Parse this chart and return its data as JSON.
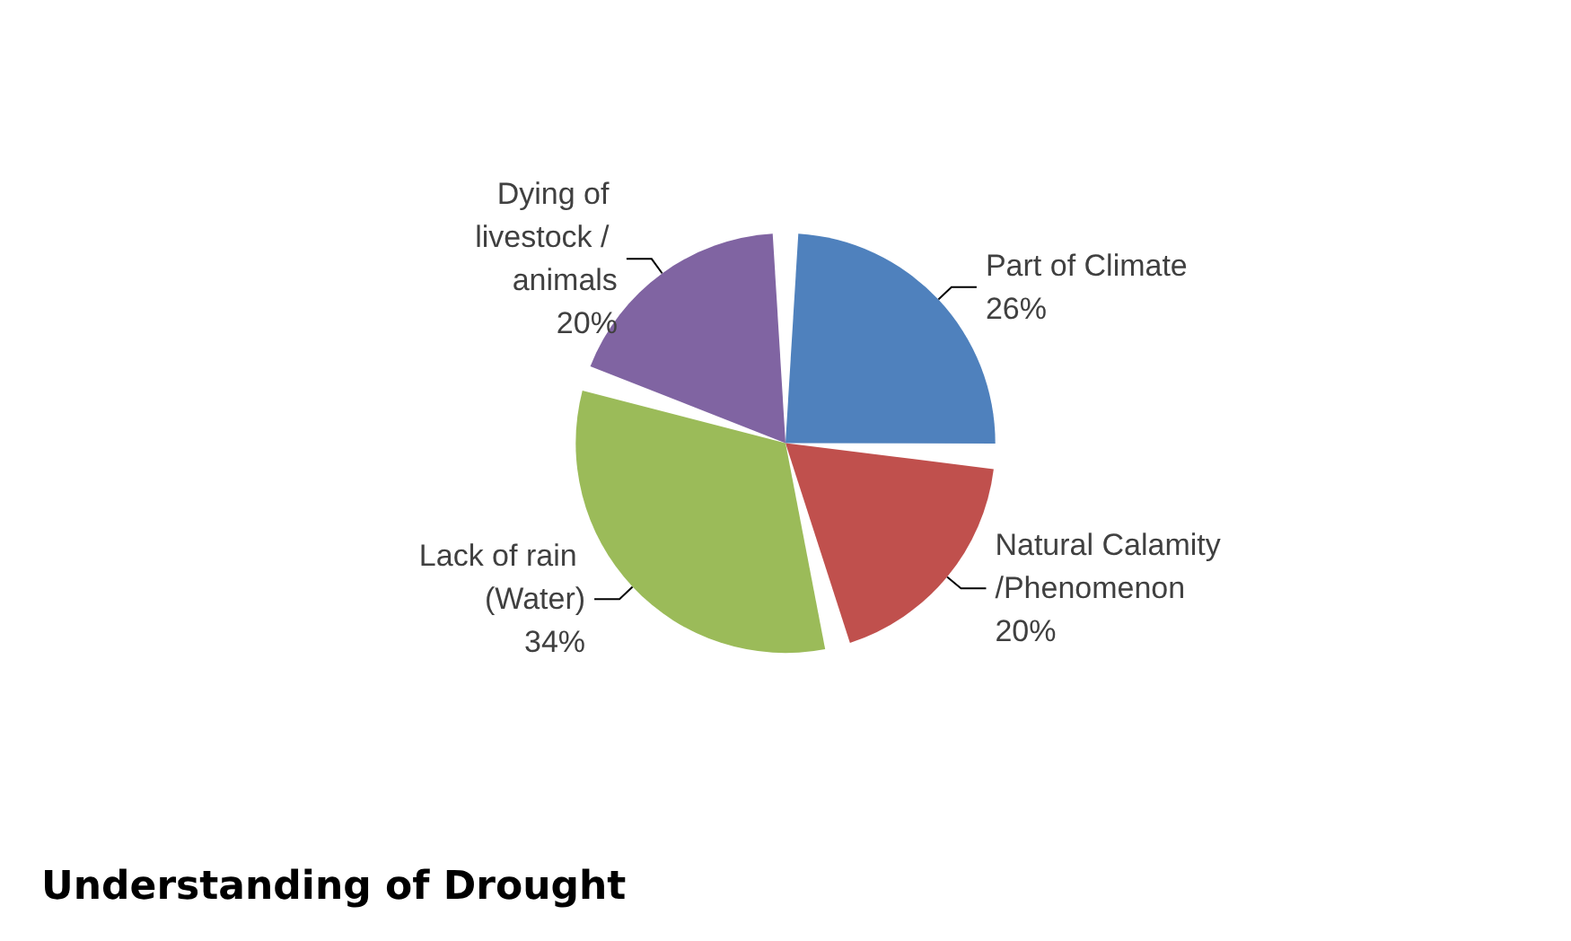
{
  "chart_data": {
    "type": "pie",
    "title": "Understanding of Drought",
    "categories": [
      "Part of Climate",
      "Natural Calamity/Phenomenon",
      "Lack of rain (Water)",
      "Dying of livestock / animals"
    ],
    "values": [
      26,
      20,
      34,
      20
    ],
    "value_labels": [
      "26%",
      "20%",
      "34%",
      "20%"
    ],
    "colors": [
      "#4f81bd",
      "#c0504d",
      "#9bbb59",
      "#8064a2"
    ],
    "legend": false
  }
}
